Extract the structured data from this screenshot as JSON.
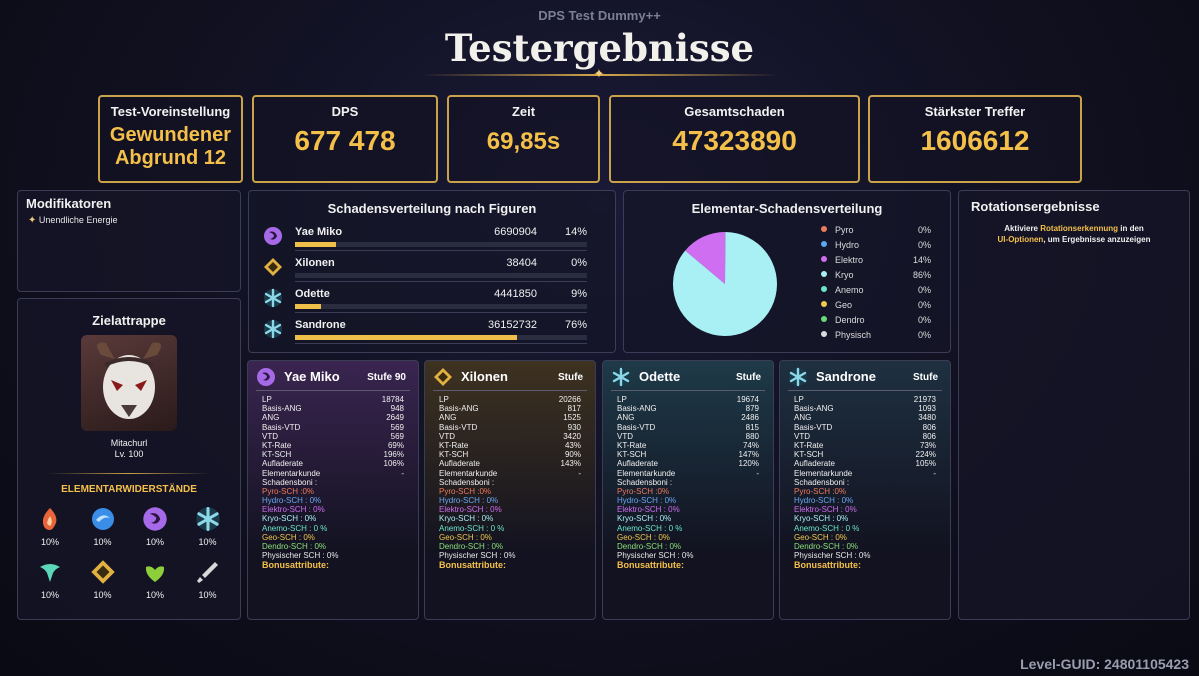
{
  "header": {
    "subtitle": "DPS Test Dummy++",
    "title": "Testergebnisse"
  },
  "summary": {
    "preset_label": "Test-Voreinstellung",
    "preset_value_line1": "Gewundener",
    "preset_value_line2": "Abgrund 12",
    "dps_label": "DPS",
    "dps_value": "677 478",
    "time_label": "Zeit",
    "time_value": "69,85s",
    "total_label": "Gesamtschaden",
    "total_value": "47323890",
    "strongest_label": "Stärkster Treffer",
    "strongest_value": "1606612"
  },
  "modifiers": {
    "title": "Modifikatoren",
    "items": [
      "Unendliche Energie"
    ]
  },
  "dummy": {
    "title": "Zielattrappe",
    "name": "Mitachurl",
    "level": "Lv. 100",
    "res_title": "ELEMENTARWIDERSTÄNDE",
    "resistances": [
      {
        "icon": "pyro-icon",
        "color": "#e8643a",
        "value": "10%"
      },
      {
        "icon": "hydro-icon",
        "color": "#3a8ee8",
        "value": "10%"
      },
      {
        "icon": "electro-icon",
        "color": "#a66ae8",
        "value": "10%"
      },
      {
        "icon": "cryo-icon",
        "color": "#8ad8e8",
        "value": "10%"
      },
      {
        "icon": "anemo-icon",
        "color": "#5ad8b8",
        "value": "10%"
      },
      {
        "icon": "geo-icon",
        "color": "#e0b040",
        "value": "10%"
      },
      {
        "icon": "dendro-icon",
        "color": "#8ccf3a",
        "value": "10%"
      },
      {
        "icon": "physical-icon",
        "color": "#d8d8d8",
        "value": "10%"
      }
    ]
  },
  "distribution": {
    "title": "Schadensverteilung nach Figuren",
    "rows": [
      {
        "name": "Yae Miko",
        "damage": "6690904",
        "pct": "14%",
        "fraction": 0.14,
        "color": "#a66ae8",
        "icon": "electro-icon"
      },
      {
        "name": "Xilonen",
        "damage": "38404",
        "pct": "0%",
        "fraction": 0.0,
        "color": "#e0b040",
        "icon": "geo-icon"
      },
      {
        "name": "Odette",
        "damage": "4441850",
        "pct": "9%",
        "fraction": 0.09,
        "color": "#8ad8e8",
        "icon": "cryo-icon"
      },
      {
        "name": "Sandrone",
        "damage": "36152732",
        "pct": "76%",
        "fraction": 0.76,
        "color": "#8ad8e8",
        "icon": "cryo-icon"
      }
    ]
  },
  "elemental": {
    "title": "Elementar-Schadensverteilung",
    "chart_data": {
      "type": "pie",
      "categories": [
        "Pyro",
        "Hydro",
        "Elektro",
        "Kryo",
        "Anemo",
        "Geo",
        "Dendro",
        "Physisch"
      ],
      "values": [
        0,
        0,
        14,
        86,
        0,
        0,
        0,
        0
      ],
      "labels": [
        "0%",
        "0%",
        "14%",
        "86%",
        "0%",
        "0%",
        "0%",
        "0%"
      ],
      "colors": [
        "#ef7a5a",
        "#5aa8f0",
        "#cf6ef0",
        "#a8f0f4",
        "#6ae8c8",
        "#f0c84a",
        "#6ad87a",
        "#dcdcdc"
      ],
      "legend": "right"
    }
  },
  "rotation": {
    "title": "Rotationsergebnisse",
    "text1": "Aktiviere ",
    "link1": "Rotationserkennung",
    "text2": " in den",
    "link2": "UI-Optionen",
    "text3": ", um Ergebnisse anzuzeigen"
  },
  "stat_labels": [
    "LP",
    "Basis-ANG",
    "ANG",
    "Basis-VTD",
    "VTD",
    "KT-Rate",
    "KT-SCH",
    "Aufladerate",
    "Elementarkunde",
    "Schadensboni :"
  ],
  "bonus_labels": [
    "Pyro-SCH :0%",
    "Hydro-SCH : 0%",
    "Elektro-SCH : 0%",
    "Kryo-SCH : 0%",
    "Anemo-SCH : 0 %",
    "Geo-SCH : 0%",
    "Dendro-SCH : 0%",
    "Physischer SCH : 0%"
  ],
  "bonus_colors": [
    "#ef7a5a",
    "#6aa8f0",
    "#cf6ef0",
    "#a8f0f4",
    "#6ae8c8",
    "#f0c84a",
    "#8ce07a",
    "#e8e8e8"
  ],
  "bonus_attr_label": "Bonusattribute:",
  "cards": [
    {
      "name": "Yae Miko",
      "level": "Stufe 90",
      "icon": "electro-icon",
      "color": "#a66ae8",
      "bg": "#3a2550",
      "stats": [
        "18784",
        "948",
        "2649",
        "569",
        "569",
        "69%",
        "196%",
        "106%",
        "-"
      ]
    },
    {
      "name": "Xilonen",
      "level": "Stufe",
      "icon": "geo-icon",
      "color": "#e0b040",
      "bg": "#3e3220",
      "stats": [
        "20266",
        "817",
        "1525",
        "930",
        "3420",
        "43%",
        "90%",
        "143%",
        "-"
      ]
    },
    {
      "name": "Odette",
      "level": "Stufe",
      "icon": "cryo-icon",
      "color": "#8ad8e8",
      "bg": "#1e3a48",
      "stats": [
        "19674",
        "879",
        "2486",
        "815",
        "880",
        "74%",
        "147%",
        "120%",
        "-"
      ]
    },
    {
      "name": "Sandrone",
      "level": "Stufe",
      "icon": "cryo-icon",
      "color": "#8ad8e8",
      "bg": "#1e3040",
      "stats": [
        "21973",
        "1093",
        "3480",
        "806",
        "806",
        "73%",
        "224%",
        "105%",
        "-"
      ]
    }
  ],
  "footer": {
    "guid": "Level-GUID: 24801105423"
  }
}
